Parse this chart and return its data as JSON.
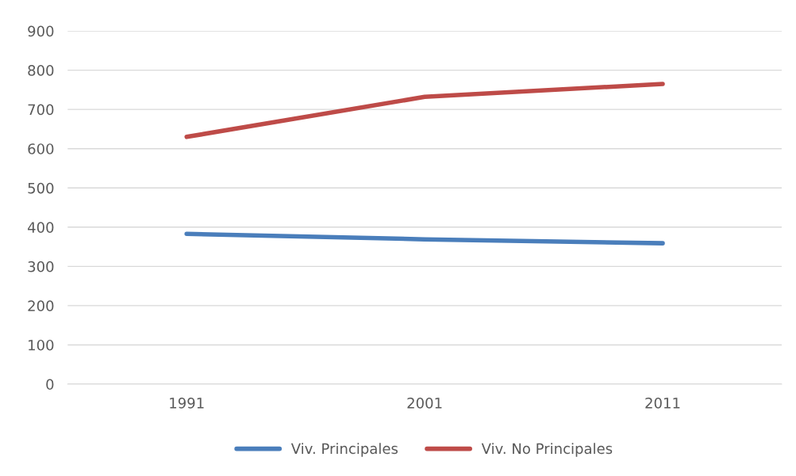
{
  "chart_data": {
    "type": "line",
    "categories": [
      "1991",
      "2001",
      "2011"
    ],
    "series": [
      {
        "name": "Viv. Principales",
        "color": "#4a7ebb",
        "values": [
          383,
          369,
          359
        ]
      },
      {
        "name": "Viv. No Principales",
        "color": "#be4b48",
        "values": [
          630,
          732,
          765
        ]
      }
    ],
    "ylim": [
      0,
      900
    ],
    "yticks": [
      0,
      100,
      200,
      300,
      400,
      500,
      600,
      700,
      800,
      900
    ],
    "grid": "y",
    "legend": "bottom",
    "marker": "none",
    "line_style": "solid"
  }
}
